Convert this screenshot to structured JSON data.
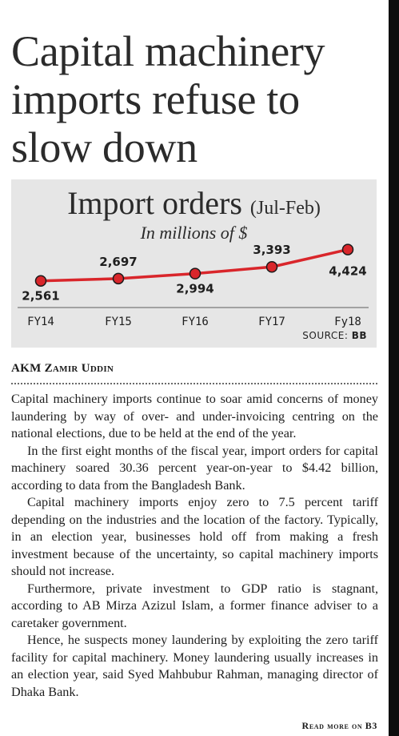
{
  "headline": "Capital machinery imports refuse to slow down",
  "chart_data": {
    "type": "line",
    "title": "Import orders",
    "title_suffix": "(Jul-Feb)",
    "subtitle": "In millions of $",
    "categories": [
      "FY14",
      "FY15",
      "FY16",
      "FY17",
      "Fy18"
    ],
    "values": [
      2561,
      2697,
      2994,
      3393,
      4424
    ],
    "value_labels": [
      "2,561",
      "2,697",
      "2,994",
      "3,393",
      "4,424"
    ],
    "line_color": "#d9262b",
    "marker_fill": "#d9262b",
    "marker_stroke": "#1a1a1a",
    "background": "#e6e6e6",
    "source_label": "SOURCE:",
    "source_name": "BB",
    "grid": false
  },
  "byline": "AKM Zamir Uddin",
  "paragraphs": [
    "Capital machinery imports continue to soar amid concerns of money laundering by way of over- and under-invoicing centring on the national elections, due to be held at the end of the year.",
    "In the first eight months of the fiscal year, import orders for capital machinery soared 30.36 percent year-on-year to $4.42 billion, according to data from the Bangladesh Bank.",
    "Capital machinery imports enjoy zero to 7.5 percent tariff depending on the industries and the location of the factory. Typically, in an election year, businesses hold off from making a fresh investment because of the uncertainty, so capital machinery imports should not increase.",
    "Furthermore, private investment to GDP ratio is stagnant, according to AB Mirza Azizul Islam, a former finance adviser to a caretaker government.",
    "Hence, he suspects money laundering by exploiting the zero tariff facility for capital machinery. Money laundering usually increases in an election year, said Syed Mahbubur Rahman, managing director of Dhaka Bank."
  ],
  "read_more": "Read more on B3"
}
